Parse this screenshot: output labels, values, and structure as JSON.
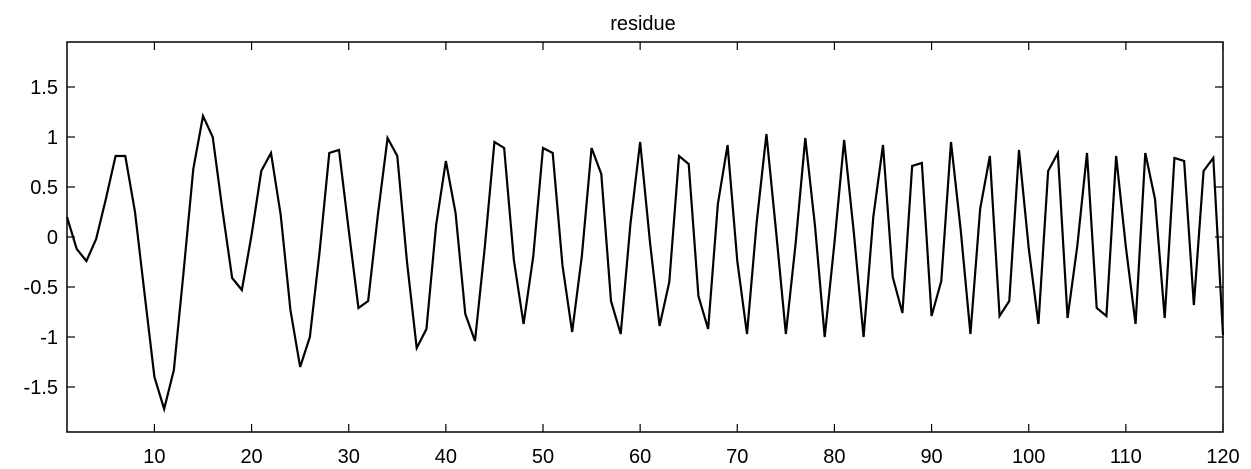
{
  "chart_data": {
    "type": "line",
    "title": "residue",
    "xlabel": "",
    "ylabel": "",
    "xlim": [
      1,
      120
    ],
    "ylim": [
      -1.95,
      1.95
    ],
    "grid": false,
    "x_ticks": [
      10,
      20,
      30,
      40,
      50,
      60,
      70,
      80,
      90,
      100,
      110,
      120
    ],
    "y_ticks": [
      -1.5,
      -1,
      -0.5,
      0,
      0.5,
      1,
      1.5
    ],
    "line_color": "#000000",
    "series": [
      {
        "x": [
          1,
          2,
          3,
          4,
          5,
          6,
          7,
          8,
          9,
          10,
          11,
          12,
          13,
          14,
          15,
          16,
          17,
          18,
          19,
          20,
          21,
          22,
          23,
          24,
          25,
          26,
          27,
          28,
          29,
          30,
          31,
          32,
          33,
          34,
          35,
          36,
          37,
          38,
          39,
          40,
          41,
          42,
          43,
          44,
          45,
          46,
          47,
          48,
          49,
          50,
          51,
          52,
          53,
          54,
          55,
          56,
          57,
          58,
          59,
          60,
          61,
          62,
          63,
          64,
          65,
          66,
          67,
          68,
          69,
          70,
          71,
          72,
          73,
          74,
          75,
          76,
          77,
          78,
          79,
          80,
          81,
          82,
          83,
          84,
          85,
          86,
          87,
          88,
          89,
          90,
          91,
          92,
          93,
          94,
          95,
          96,
          97,
          98,
          99,
          100,
          101,
          102,
          103,
          104,
          105,
          106,
          107,
          108,
          109,
          110,
          111,
          112,
          113,
          114,
          115,
          116,
          117,
          118,
          119,
          120
        ],
        "y": [
          0.2,
          -0.12,
          -0.24,
          -0.02,
          0.38,
          0.81,
          0.81,
          0.25,
          -0.58,
          -1.4,
          -1.72,
          -1.33,
          -0.35,
          0.68,
          1.21,
          1.0,
          0.27,
          -0.41,
          -0.53,
          0.02,
          0.66,
          0.84,
          0.22,
          -0.73,
          -1.3,
          -1.0,
          -0.15,
          0.84,
          0.87,
          0.07,
          -0.71,
          -0.64,
          0.22,
          0.99,
          0.81,
          -0.25,
          -1.11,
          -0.92,
          0.12,
          0.76,
          0.24,
          -0.77,
          -1.04,
          -0.11,
          0.95,
          0.89,
          -0.23,
          -0.87,
          -0.19,
          0.89,
          0.84,
          -0.28,
          -0.95,
          -0.19,
          0.89,
          0.63,
          -0.64,
          -0.97,
          0.13,
          0.95,
          -0.04,
          -0.89,
          -0.45,
          0.81,
          0.73,
          -0.59,
          -0.92,
          0.33,
          0.92,
          -0.24,
          -0.97,
          0.15,
          1.03,
          0.05,
          -0.97,
          -0.07,
          0.99,
          0.11,
          -1.0,
          -0.06,
          0.97,
          0.04,
          -1.0,
          0.2,
          0.92,
          -0.4,
          -0.76,
          0.71,
          0.74,
          -0.79,
          -0.44,
          0.95,
          0.07,
          -0.97,
          0.28,
          0.81,
          -0.79,
          -0.64,
          0.87,
          -0.11,
          -0.87,
          0.66,
          0.84,
          -0.81,
          -0.09,
          0.84,
          -0.71,
          -0.79,
          0.81,
          -0.1,
          -0.87,
          0.84,
          0.38,
          -0.81,
          0.79,
          0.76,
          -0.68,
          0.66,
          0.79,
          -0.98
        ]
      }
    ]
  }
}
